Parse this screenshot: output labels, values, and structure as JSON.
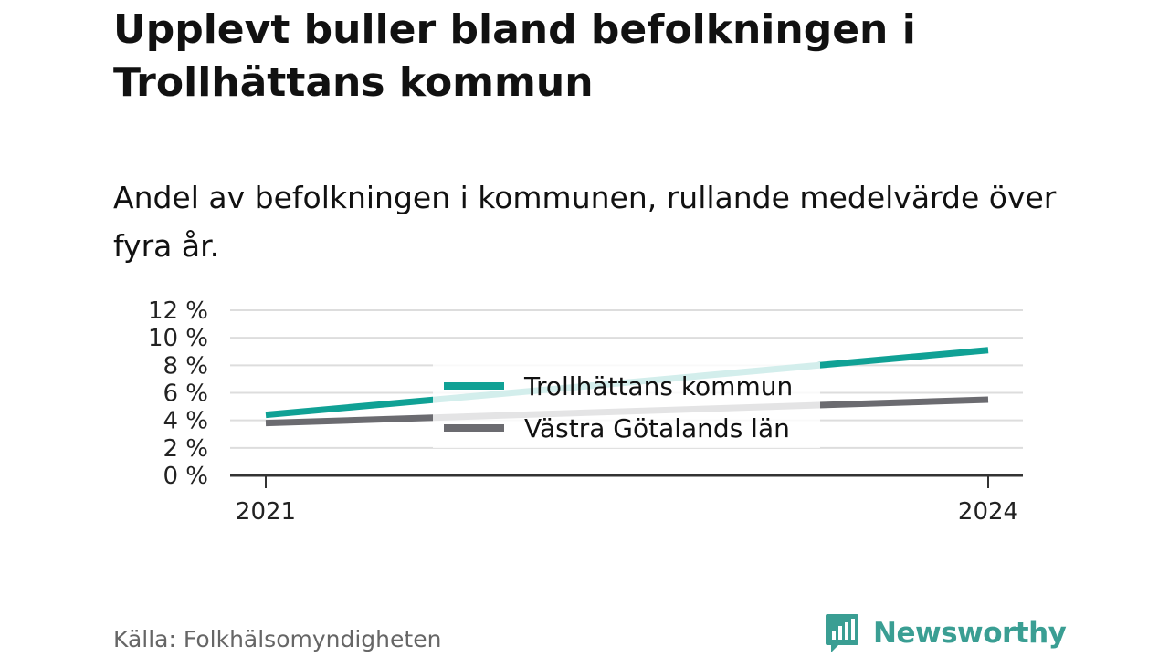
{
  "title": "Upplevt buller bland befolkningen i Trollhättans kommun",
  "subtitle": "Andel av befolkningen i kommunen, rullande medelvärde över fyra år.",
  "source": "Källa: Folkhälsomyndigheten",
  "brand": "Newsworthy",
  "colors": {
    "trollhattan": "#10a195",
    "vastra_gotaland": "#6b6b70",
    "grid": "#dddddd",
    "axis": "#333333",
    "brand": "#3a9e93"
  },
  "chart_data": {
    "type": "line",
    "x": [
      "2021",
      "2024"
    ],
    "y_ticks": [
      "0 %",
      "2 %",
      "4 %",
      "6 %",
      "8 %",
      "10 %",
      "12 %"
    ],
    "ylim": [
      0,
      12
    ],
    "grid": true,
    "legend_position": "center",
    "series": [
      {
        "name": "Trollhättans kommun",
        "values": [
          4.4,
          9.1
        ],
        "color": "#10a195"
      },
      {
        "name": "Västra Götalands län",
        "values": [
          3.8,
          5.5
        ],
        "color": "#6b6b70"
      }
    ]
  }
}
